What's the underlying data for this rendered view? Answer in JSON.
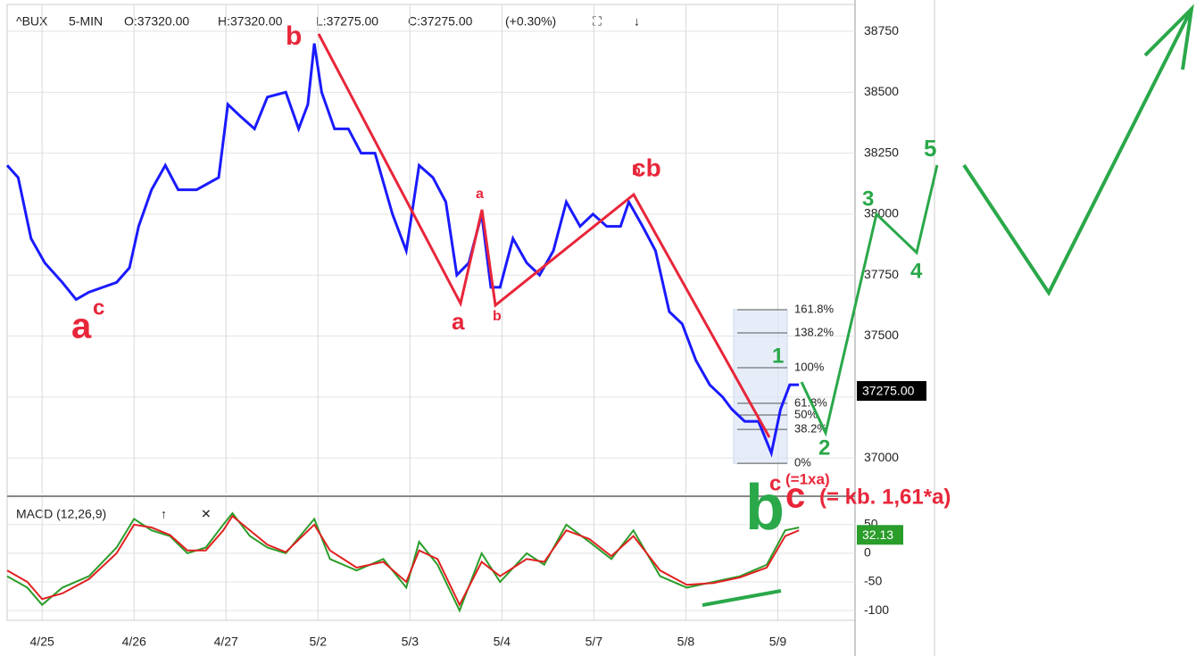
{
  "header": {
    "symbol": "^BUX",
    "interval": "5-MIN",
    "open": "O:37320.00",
    "high": "H:37320.00",
    "low": "L:37275.00",
    "close": "C:37275.00",
    "change": "(+0.30%)"
  },
  "chart_data": [
    {
      "type": "line",
      "xlim": [
        -0.38,
        8.84
      ],
      "ylim": [
        36854,
        38860
      ],
      "xticks": [
        {
          "value": 0,
          "label": "4/25"
        },
        {
          "value": 1,
          "label": "4/26"
        },
        {
          "value": 2,
          "label": "4/27"
        },
        {
          "value": 3,
          "label": "5/2"
        },
        {
          "value": 4,
          "label": "5/3"
        },
        {
          "value": 5,
          "label": "5/4"
        },
        {
          "value": 6,
          "label": "5/7"
        },
        {
          "value": 7,
          "label": "5/8"
        },
        {
          "value": 8,
          "label": "5/9"
        }
      ],
      "yticks": [
        37000,
        37250,
        37500,
        37750,
        38000,
        38250,
        38500,
        38750
      ],
      "grid": true,
      "series": [
        {
          "name": "^BUX",
          "color": "#1a1aff",
          "x": [
            -0.38,
            -0.26,
            -0.12,
            0.03,
            0.22,
            0.37,
            0.51,
            0.66,
            0.81,
            0.95,
            1.05,
            1.19,
            1.34,
            1.48,
            1.68,
            1.92,
            2.02,
            2.16,
            2.31,
            2.45,
            2.65,
            2.79,
            2.89,
            2.96,
            3.04,
            3.18,
            3.33,
            3.47,
            3.62,
            3.81,
            3.96,
            4.1,
            4.25,
            4.39,
            4.51,
            4.64,
            4.78,
            4.88,
            4.98,
            5.12,
            5.27,
            5.41,
            5.56,
            5.7,
            5.85,
            5.99,
            6.14,
            6.29,
            6.38,
            6.53,
            6.67,
            6.82,
            6.96,
            7.11,
            7.26,
            7.4,
            7.5,
            7.64,
            7.79,
            7.93,
            8.03,
            8.13,
            8.23
          ],
          "values": [
            38200,
            38150,
            37900,
            37800,
            37720,
            37650,
            37680,
            37700,
            37720,
            37780,
            37950,
            38100,
            38200,
            38100,
            38100,
            38150,
            38450,
            38400,
            38350,
            38480,
            38500,
            38350,
            38450,
            38700,
            38500,
            38350,
            38350,
            38250,
            38250,
            38000,
            37850,
            38200,
            38150,
            38050,
            37750,
            37800,
            38000,
            37700,
            37700,
            37900,
            37800,
            37750,
            37850,
            38050,
            37950,
            38000,
            37950,
            37950,
            38050,
            37950,
            37850,
            37600,
            37550,
            37400,
            37300,
            37250,
            37200,
            37150,
            37150,
            37020,
            37200,
            37300,
            37300
          ]
        }
      ],
      "last_price": {
        "value": 37275,
        "label": "37275.00"
      },
      "fib_levels": [
        {
          "value": 37608,
          "label": "161.8%"
        },
        {
          "value": 37513,
          "label": "138.2%"
        },
        {
          "value": 37370,
          "label": "100%"
        },
        {
          "value": 37224,
          "label": "61.8%"
        },
        {
          "value": 37176,
          "label": "50%"
        },
        {
          "value": 37117,
          "label": "38.2%"
        },
        {
          "value": 36978,
          "label": "0%"
        }
      ],
      "annotations": [
        "b",
        "a",
        "c",
        "a",
        "a",
        "b",
        "b",
        "cb",
        "1",
        "2",
        "3",
        "4",
        "5",
        "c",
        "(=1xa)",
        "b",
        "c",
        "(= kb. 1,61*a)"
      ]
    },
    {
      "type": "line",
      "title": "MACD (12,26,9)",
      "xlim": [
        -0.38,
        8.84
      ],
      "ylim": [
        -117,
        98
      ],
      "yticks": [
        50,
        0,
        -50,
        -100
      ],
      "series": [
        {
          "name": "MACD",
          "color": "#2a9d2a",
          "x": [
            -0.38,
            -0.16,
            0,
            0.22,
            0.51,
            0.81,
            1.0,
            1.19,
            1.39,
            1.58,
            1.78,
            1.97,
            2.07,
            2.26,
            2.45,
            2.65,
            2.96,
            3.13,
            3.42,
            3.71,
            3.96,
            4.1,
            4.3,
            4.54,
            4.78,
            4.98,
            5.27,
            5.46,
            5.7,
            5.95,
            6.19,
            6.43,
            6.72,
            7.01,
            7.3,
            7.59,
            7.88,
            8.08,
            8.23
          ],
          "values": [
            -40,
            -60,
            -90,
            -60,
            -40,
            10,
            60,
            40,
            30,
            0,
            10,
            50,
            70,
            30,
            10,
            0,
            60,
            -10,
            -30,
            -10,
            -60,
            20,
            -20,
            -100,
            0,
            -50,
            0,
            -20,
            50,
            20,
            -10,
            40,
            -40,
            -60,
            -50,
            -40,
            -20,
            40,
            45
          ]
        },
        {
          "name": "Signal",
          "color": "#e02020",
          "x": [
            -0.38,
            -0.16,
            0,
            0.22,
            0.51,
            0.81,
            1.0,
            1.19,
            1.39,
            1.58,
            1.78,
            1.97,
            2.07,
            2.26,
            2.45,
            2.65,
            2.96,
            3.13,
            3.42,
            3.71,
            3.96,
            4.1,
            4.3,
            4.54,
            4.78,
            4.98,
            5.27,
            5.46,
            5.7,
            5.95,
            6.19,
            6.43,
            6.72,
            7.01,
            7.3,
            7.59,
            7.88,
            8.08,
            8.23
          ],
          "values": [
            -30,
            -50,
            -80,
            -70,
            -45,
            0,
            50,
            45,
            32,
            5,
            5,
            40,
            65,
            40,
            15,
            2,
            50,
            5,
            -25,
            -15,
            -50,
            5,
            -10,
            -90,
            -15,
            -40,
            -10,
            -15,
            40,
            25,
            -5,
            30,
            -30,
            -55,
            -52,
            -42,
            -25,
            30,
            40
          ]
        }
      ],
      "last_value": {
        "value": 32.13,
        "label": "32.13"
      }
    }
  ]
}
